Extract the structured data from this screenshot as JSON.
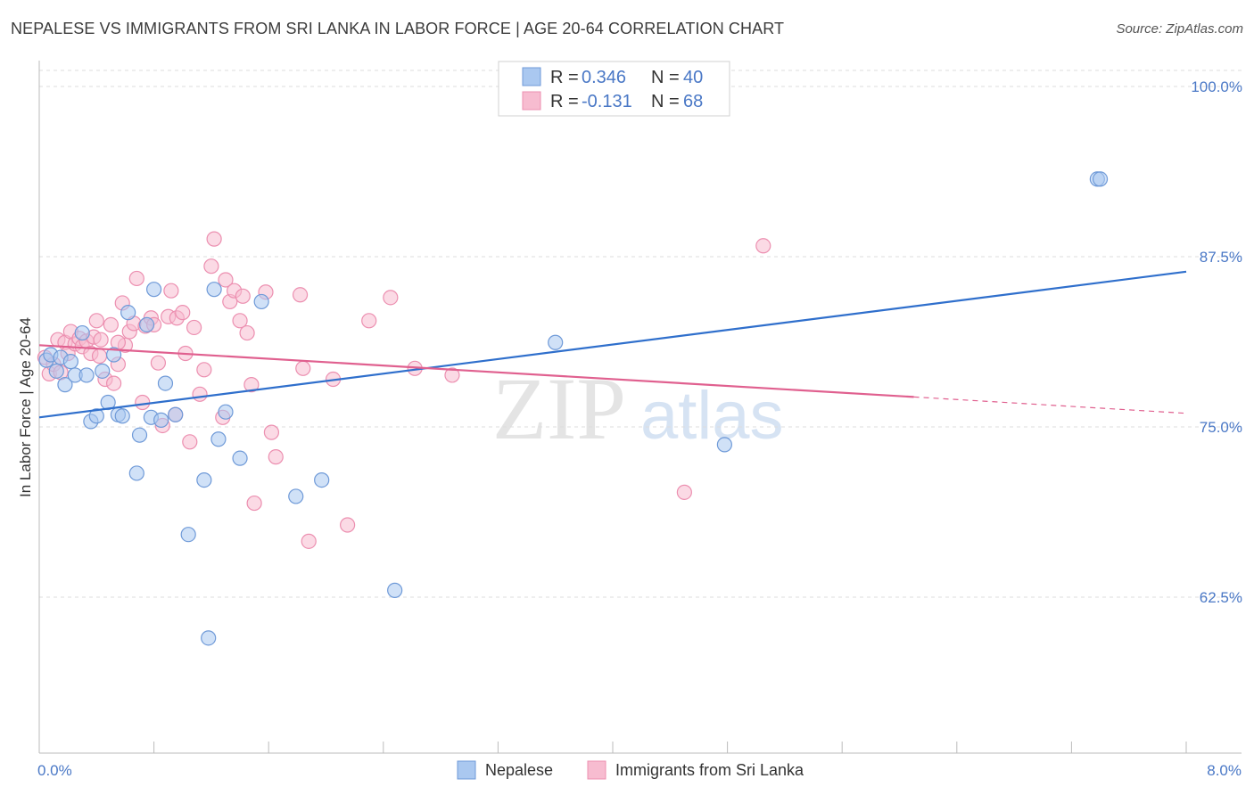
{
  "header": {
    "title": "NEPALESE VS IMMIGRANTS FROM SRI LANKA IN LABOR FORCE | AGE 20-64 CORRELATION CHART",
    "source": "Source: ZipAtlas.com"
  },
  "watermark": {
    "zip": "ZIP",
    "atlas": "atlas"
  },
  "legend": {
    "rows": [
      {
        "r_label": "R = ",
        "r_value": "0.346",
        "n_label": "N = ",
        "n_value": "40"
      },
      {
        "r_label": "R = ",
        "r_value": "-0.131",
        "n_label": "N = ",
        "n_value": "68"
      }
    ]
  },
  "bottom_legend": {
    "series1": "Nepalese",
    "series2": "Immigrants from Sri Lanka"
  },
  "colors": {
    "nepalese_fill": "#aac8f0",
    "nepalese_stroke": "#6f9ad8",
    "nepalese_line": "#2f6fcc",
    "srilanka_fill": "#f7bcd0",
    "srilanka_stroke": "#ec8fb0",
    "srilanka_line": "#e0608f",
    "tick_label": "#4a78c6",
    "grid": "#dddddd"
  },
  "chart_data": {
    "type": "scatter",
    "title": "NEPALESE VS IMMIGRANTS FROM SRI LANKA IN LABOR FORCE | AGE 20-64 CORRELATION CHART",
    "xlabel": "",
    "ylabel": "In Labor Force | Age 20-64",
    "xlim": [
      0.0,
      8.0
    ],
    "ylim": [
      52.0,
      101.5
    ],
    "x_tick_labels": [
      "0.0%",
      "8.0%"
    ],
    "y_ticks": [
      62.5,
      75.0,
      87.5,
      100.0
    ],
    "y_tick_labels": [
      "62.5%",
      "75.0%",
      "87.5%",
      "100.0%"
    ],
    "grid": "horizontal dashed",
    "legend_position": "top-center",
    "series": [
      {
        "name": "Nepalese",
        "R": 0.346,
        "N": 40,
        "trend": {
          "x": [
            0.0,
            8.0
          ],
          "y": [
            75.7,
            86.4
          ]
        },
        "points": [
          [
            0.05,
            79.9
          ],
          [
            0.08,
            80.3
          ],
          [
            0.12,
            79.1
          ],
          [
            0.15,
            80.1
          ],
          [
            0.18,
            78.1
          ],
          [
            0.22,
            79.8
          ],
          [
            0.25,
            78.8
          ],
          [
            0.3,
            81.9
          ],
          [
            0.33,
            78.8
          ],
          [
            0.36,
            75.4
          ],
          [
            0.4,
            75.8
          ],
          [
            0.44,
            79.1
          ],
          [
            0.48,
            76.8
          ],
          [
            0.52,
            80.3
          ],
          [
            0.55,
            75.9
          ],
          [
            0.58,
            75.8
          ],
          [
            0.62,
            83.4
          ],
          [
            0.68,
            71.6
          ],
          [
            0.7,
            74.4
          ],
          [
            0.75,
            82.5
          ],
          [
            0.78,
            75.7
          ],
          [
            0.8,
            85.1
          ],
          [
            0.85,
            75.5
          ],
          [
            0.88,
            78.2
          ],
          [
            0.95,
            75.9
          ],
          [
            1.04,
            67.1
          ],
          [
            1.15,
            71.1
          ],
          [
            1.18,
            59.5
          ],
          [
            1.22,
            85.1
          ],
          [
            1.25,
            74.1
          ],
          [
            1.3,
            76.1
          ],
          [
            1.4,
            72.7
          ],
          [
            1.55,
            84.2
          ],
          [
            1.79,
            69.9
          ],
          [
            1.97,
            71.1
          ],
          [
            2.48,
            63.0
          ],
          [
            3.6,
            81.2
          ],
          [
            4.78,
            73.7
          ],
          [
            7.38,
            93.2
          ],
          [
            7.4,
            93.2
          ]
        ]
      },
      {
        "name": "Immigrants from Sri Lanka",
        "R": -0.131,
        "N": 68,
        "trend": {
          "x": [
            0.0,
            6.1
          ],
          "y": [
            81.0,
            77.2
          ]
        },
        "trend_dashed": {
          "x": [
            6.1,
            8.0
          ],
          "y": [
            77.2,
            76.0
          ]
        },
        "points": [
          [
            0.04,
            80.1
          ],
          [
            0.07,
            78.9
          ],
          [
            0.1,
            79.6
          ],
          [
            0.13,
            81.4
          ],
          [
            0.15,
            79.0
          ],
          [
            0.18,
            81.2
          ],
          [
            0.2,
            80.4
          ],
          [
            0.22,
            82.0
          ],
          [
            0.25,
            81.1
          ],
          [
            0.28,
            81.5
          ],
          [
            0.3,
            80.9
          ],
          [
            0.33,
            81.3
          ],
          [
            0.36,
            80.4
          ],
          [
            0.38,
            81.6
          ],
          [
            0.4,
            82.8
          ],
          [
            0.43,
            81.4
          ],
          [
            0.46,
            78.5
          ],
          [
            0.5,
            82.5
          ],
          [
            0.52,
            78.2
          ],
          [
            0.55,
            79.6
          ],
          [
            0.58,
            84.1
          ],
          [
            0.6,
            81.0
          ],
          [
            0.63,
            82.0
          ],
          [
            0.66,
            82.6
          ],
          [
            0.68,
            85.9
          ],
          [
            0.72,
            76.8
          ],
          [
            0.74,
            82.4
          ],
          [
            0.78,
            83.0
          ],
          [
            0.8,
            82.5
          ],
          [
            0.83,
            79.7
          ],
          [
            0.86,
            75.1
          ],
          [
            0.9,
            83.1
          ],
          [
            0.92,
            85.0
          ],
          [
            0.96,
            83.0
          ],
          [
            1.0,
            83.4
          ],
          [
            1.02,
            80.4
          ],
          [
            1.05,
            73.9
          ],
          [
            1.08,
            82.3
          ],
          [
            1.12,
            77.4
          ],
          [
            1.15,
            79.2
          ],
          [
            1.2,
            86.8
          ],
          [
            1.22,
            88.8
          ],
          [
            1.28,
            75.7
          ],
          [
            1.3,
            85.8
          ],
          [
            1.33,
            84.2
          ],
          [
            1.36,
            85.0
          ],
          [
            1.4,
            82.8
          ],
          [
            1.42,
            84.6
          ],
          [
            1.45,
            81.9
          ],
          [
            1.48,
            78.1
          ],
          [
            1.5,
            69.4
          ],
          [
            1.58,
            84.9
          ],
          [
            1.62,
            74.6
          ],
          [
            1.65,
            72.8
          ],
          [
            1.82,
            84.7
          ],
          [
            1.84,
            79.3
          ],
          [
            1.88,
            66.6
          ],
          [
            2.05,
            78.5
          ],
          [
            2.15,
            67.8
          ],
          [
            2.3,
            82.8
          ],
          [
            2.45,
            84.5
          ],
          [
            2.62,
            79.3
          ],
          [
            2.88,
            78.8
          ],
          [
            4.5,
            70.2
          ],
          [
            5.05,
            88.3
          ],
          [
            0.55,
            81.2
          ],
          [
            0.95,
            75.9
          ],
          [
            0.42,
            80.2
          ]
        ]
      }
    ]
  }
}
